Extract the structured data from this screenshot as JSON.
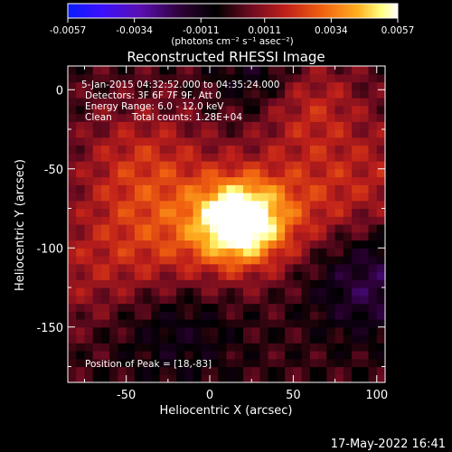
{
  "chart_data": {
    "type": "heatmap",
    "title": "Reconstructed RHESSI Image",
    "xlabel": "Heliocentric X (arcsec)",
    "ylabel": "Heliocentric Y (arcsec)",
    "xlim": [
      -85,
      105
    ],
    "ylim": [
      -185,
      15
    ],
    "x_ticks": [
      -50,
      0,
      50,
      100
    ],
    "y_ticks": [
      0,
      -50,
      -100,
      -150
    ],
    "colorbar": {
      "label": "(photons cm⁻² s⁻¹ asec⁻²)",
      "range": [
        -0.0057,
        0.0057
      ],
      "ticks": [
        "-0.0057",
        "-0.0034",
        "-0.0011",
        "0.0011",
        "0.0034",
        "0.0057"
      ],
      "colormap": [
        "#0a1bff",
        "#3b10ff",
        "#5a0fb0",
        "#2a0030",
        "#000000",
        "#6a0a20",
        "#c0201a",
        "#f06010",
        "#ffb020",
        "#ffff80",
        "#ffffff"
      ]
    },
    "annotations": [
      "5-Jan-2015 04:32:52.000 to 04:35:24.000",
      "Detectors: 3F 6F 7F 9F, Att 0",
      "Energy Range: 6.0 - 12.0 keV",
      "Clean",
      "Total counts: 1.28E+04",
      "Position of Peak = [18,-83]"
    ],
    "peak": {
      "x": 18,
      "y": -83
    }
  },
  "footer": {
    "timestamp": "17-May-2022 16:41"
  }
}
